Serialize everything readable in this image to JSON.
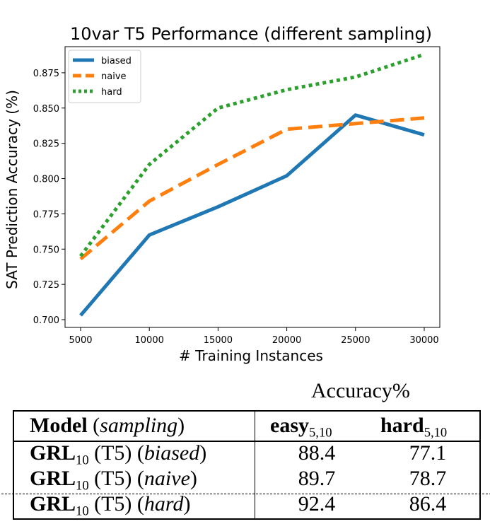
{
  "chart_data": {
    "type": "line",
    "title": "10var T5 Performance (different sampling)",
    "xlabel": "# Training Instances",
    "ylabel": "SAT Prediction Accuracy (%)",
    "x": [
      5000,
      10000,
      15000,
      20000,
      25000,
      30000
    ],
    "xticks": [
      "5000",
      "10000",
      "15000",
      "20000",
      "25000",
      "30000"
    ],
    "yticks": [
      "0.700",
      "0.725",
      "0.750",
      "0.775",
      "0.800",
      "0.825",
      "0.850",
      "0.875"
    ],
    "xlim": [
      5000,
      30000
    ],
    "ylim": [
      0.6945,
      0.8935
    ],
    "legend_position": "top-left",
    "series": [
      {
        "name": "biased",
        "color": "#1f77b4",
        "style": "solid",
        "values": [
          0.703,
          0.76,
          0.78,
          0.802,
          0.845,
          0.831
        ]
      },
      {
        "name": "naive",
        "color": "#ff7f0e",
        "style": "dashed",
        "values": [
          0.743,
          0.784,
          0.81,
          0.835,
          0.839,
          0.843
        ]
      },
      {
        "name": "hard",
        "color": "#2ca02c",
        "style": "dotted",
        "values": [
          0.745,
          0.81,
          0.85,
          0.863,
          0.872,
          0.888
        ]
      }
    ]
  },
  "table": {
    "group_header": "Accuracy%",
    "columns": {
      "model_bold": "Model",
      "model_italic": "sampling",
      "easy": "easy",
      "easy_sub": "5,10",
      "hard": "hard",
      "hard_sub": "5,10"
    },
    "rows": [
      {
        "name": "GRL",
        "sub": "10",
        "arch": "(T5)",
        "sampling": "biased",
        "easy": "88.4",
        "hard": "77.1"
      },
      {
        "name": "GRL",
        "sub": "10",
        "arch": "(T5)",
        "sampling": "naive",
        "easy": "89.7",
        "hard": "78.7"
      },
      {
        "name": "GRL",
        "sub": "10",
        "arch": "(T5)",
        "sampling": "hard",
        "easy": "92.4",
        "hard": "86.4"
      }
    ]
  }
}
